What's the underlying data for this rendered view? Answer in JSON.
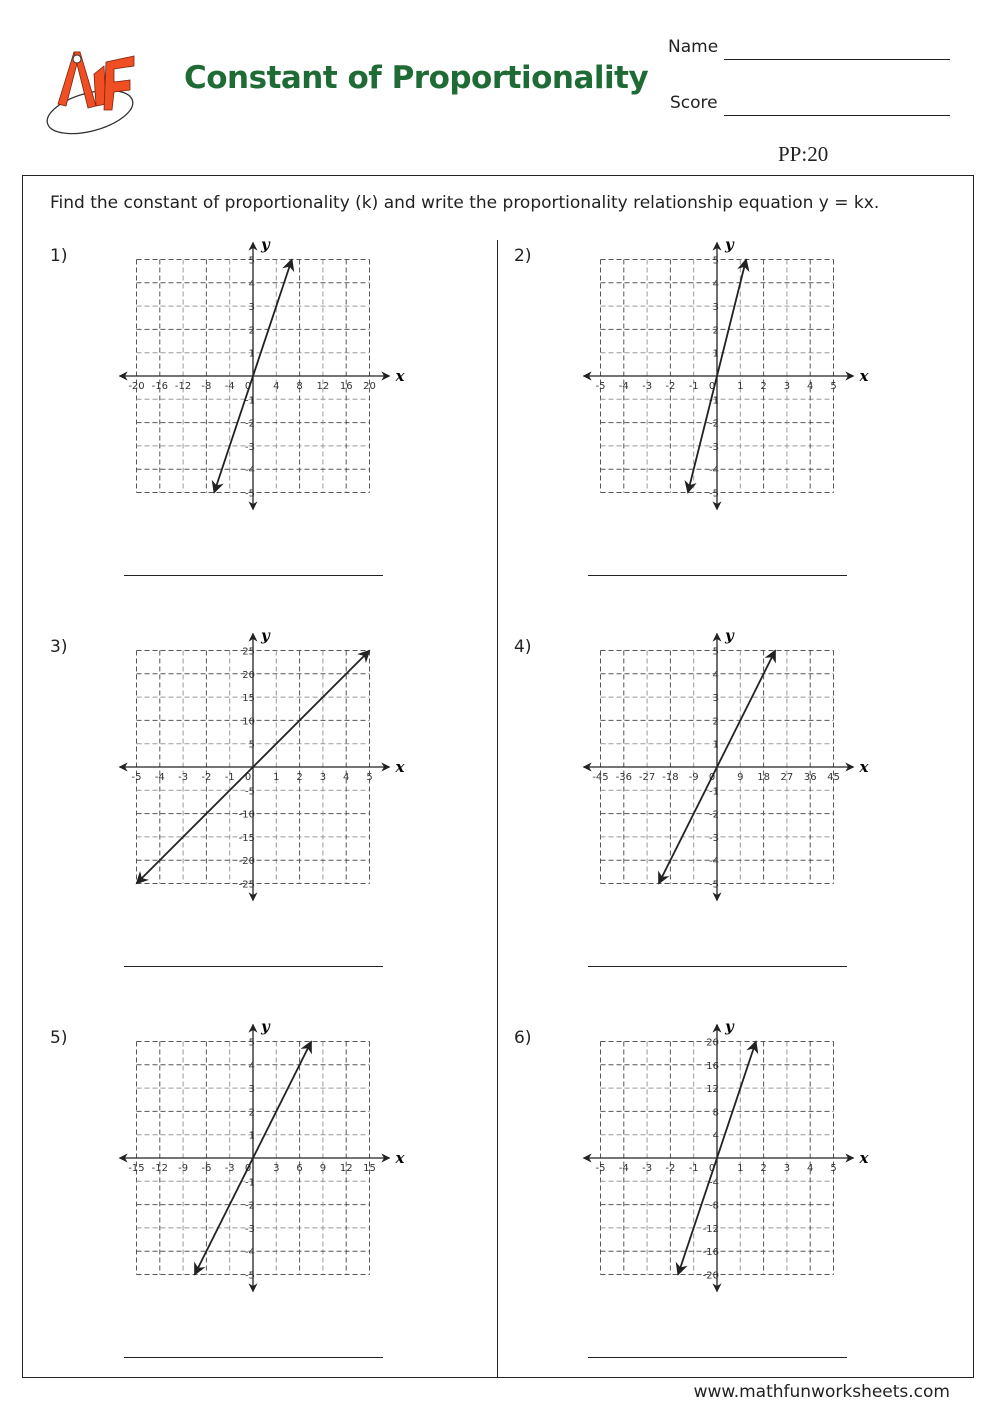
{
  "header": {
    "title": "Constant of Proportionality",
    "name_label": "Name",
    "score_label": "Score",
    "code": "PP:20",
    "logo_text": "MF"
  },
  "instructions": "Find the constant of proportionality (k) and write the proportionality relationship equation y = kx.",
  "footer": "www.mathfunworksheets.com",
  "colors": {
    "title": "#1f6b36",
    "logo": "#f04e23"
  },
  "chart_data": [
    {
      "type": "line",
      "number": "1)",
      "xlabel": "x",
      "ylabel": "y",
      "xlim": [
        -20,
        20
      ],
      "ylim": [
        -5,
        5
      ],
      "x_ticks": [
        -20,
        -16,
        -12,
        -8,
        -4,
        0,
        4,
        8,
        12,
        16,
        20
      ],
      "y_ticks": [
        -5,
        -4,
        -3,
        -2,
        -1,
        1,
        2,
        3,
        4,
        5
      ],
      "grid": true,
      "line": {
        "from": [
          -6.67,
          -5
        ],
        "to": [
          6.67,
          5
        ]
      }
    },
    {
      "type": "line",
      "number": "2)",
      "xlabel": "x",
      "ylabel": "y",
      "xlim": [
        -5,
        5
      ],
      "ylim": [
        -5,
        5
      ],
      "x_ticks": [
        -5,
        -4,
        -3,
        -2,
        -1,
        0,
        1,
        2,
        3,
        4,
        5
      ],
      "y_ticks": [
        -5,
        -4,
        -3,
        -2,
        -1,
        1,
        2,
        3,
        4,
        5
      ],
      "grid": true,
      "line": {
        "from": [
          -1.25,
          -5
        ],
        "to": [
          1.25,
          5
        ]
      }
    },
    {
      "type": "line",
      "number": "3)",
      "xlabel": "x",
      "ylabel": "y",
      "xlim": [
        -5,
        5
      ],
      "ylim": [
        -25,
        25
      ],
      "x_ticks": [
        -5,
        -4,
        -3,
        -2,
        -1,
        0,
        1,
        2,
        3,
        4,
        5
      ],
      "y_ticks": [
        -25,
        -20,
        -15,
        -10,
        -5,
        5,
        10,
        15,
        20,
        25
      ],
      "grid": true,
      "line": {
        "from": [
          -5,
          -25
        ],
        "to": [
          5,
          25
        ]
      }
    },
    {
      "type": "line",
      "number": "4)",
      "xlabel": "x",
      "ylabel": "y",
      "xlim": [
        -45,
        45
      ],
      "ylim": [
        -5,
        5
      ],
      "x_ticks": [
        -45,
        -36,
        -27,
        -18,
        -9,
        0,
        9,
        18,
        27,
        36,
        45
      ],
      "y_ticks": [
        -5,
        -4,
        -3,
        -2,
        -1,
        1,
        2,
        3,
        4,
        5
      ],
      "grid": true,
      "line": {
        "from": [
          -22.5,
          -5
        ],
        "to": [
          22.5,
          5
        ]
      }
    },
    {
      "type": "line",
      "number": "5)",
      "xlabel": "x",
      "ylabel": "y",
      "xlim": [
        -15,
        15
      ],
      "ylim": [
        -5,
        5
      ],
      "x_ticks": [
        -15,
        -12,
        -9,
        -6,
        -3,
        0,
        3,
        6,
        9,
        12,
        15
      ],
      "y_ticks": [
        -5,
        -4,
        -3,
        -2,
        -1,
        1,
        2,
        3,
        4,
        5
      ],
      "grid": true,
      "line": {
        "from": [
          -7.5,
          -5
        ],
        "to": [
          7.5,
          5
        ]
      }
    },
    {
      "type": "line",
      "number": "6)",
      "xlabel": "x",
      "ylabel": "y",
      "xlim": [
        -5,
        5
      ],
      "ylim": [
        -20,
        20
      ],
      "x_ticks": [
        -5,
        -4,
        -3,
        -2,
        -1,
        0,
        1,
        2,
        3,
        4,
        5
      ],
      "y_ticks": [
        -20,
        -16,
        -12,
        -8,
        -4,
        4,
        8,
        12,
        16,
        20
      ],
      "grid": true,
      "line": {
        "from": [
          -1.67,
          -20
        ],
        "to": [
          1.67,
          20
        ]
      }
    }
  ]
}
